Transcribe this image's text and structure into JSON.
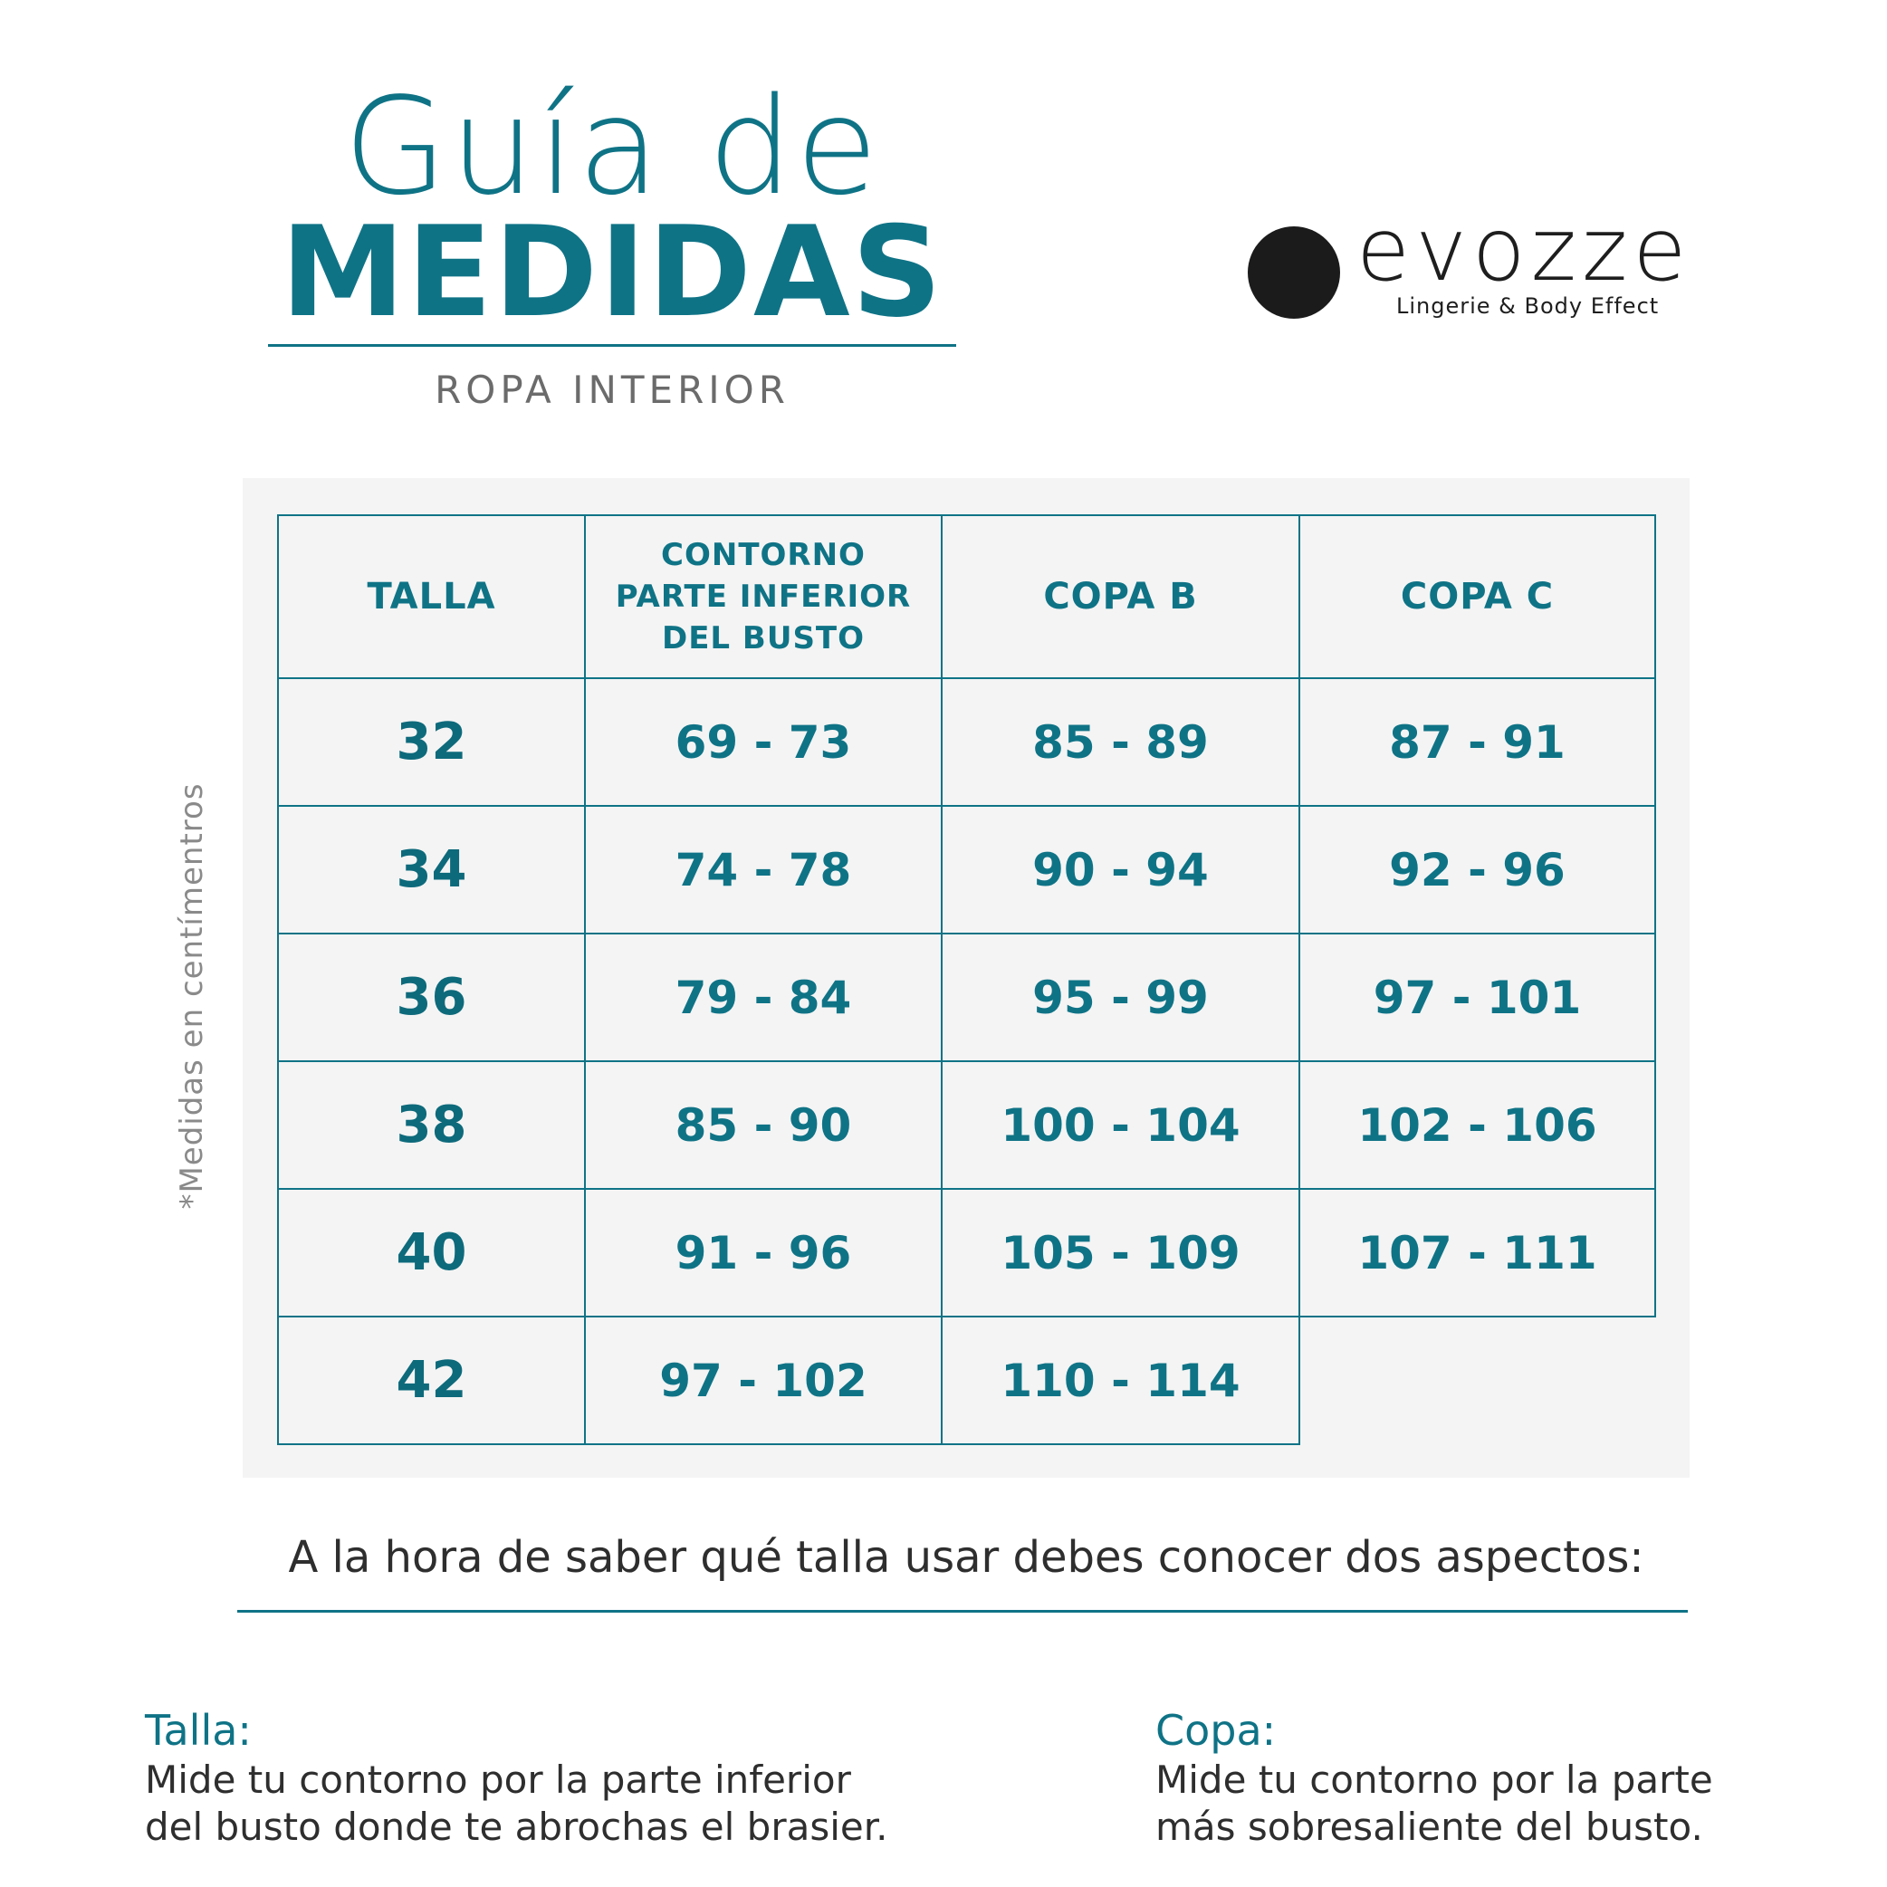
{
  "header": {
    "title_line1": "Guía de",
    "title_line2": "MEDIDAS",
    "subtitle": "ROPA INTERIOR"
  },
  "brand": {
    "name": "evozze",
    "tagline": "Lingerie & Body Effect"
  },
  "side_note": "*Medidas en centímentros",
  "table": {
    "headers": [
      "TALLA",
      "CONTORNO PARTE INFERIOR DEL BUSTO",
      "COPA B",
      "COPA C"
    ],
    "header_lines": [
      "CONTORNO",
      "PARTE INFERIOR",
      "DEL BUSTO"
    ],
    "rows": [
      [
        "32",
        "69 - 73",
        "85 - 89",
        "87 - 91"
      ],
      [
        "34",
        "74 - 78",
        "90 - 94",
        "92 - 96"
      ],
      [
        "36",
        "79 - 84",
        "95 - 99",
        "97 - 101"
      ],
      [
        "38",
        "85 - 90",
        "100 - 104",
        "102 - 106"
      ],
      [
        "40",
        "91 - 96",
        "105 - 109",
        "107 - 111"
      ],
      [
        "42",
        "97 - 102",
        "110 - 114",
        ""
      ]
    ]
  },
  "intro": "A la hora de saber qué talla usar debes conocer dos aspectos:",
  "talla": {
    "title": "Talla:",
    "line1": "Mide tu contorno por la parte inferior",
    "line2": "del busto donde te abrochas el brasier."
  },
  "copa": {
    "title": "Copa:",
    "line1": "Mide tu contorno por la parte",
    "line2": "más sobresaliente del busto."
  },
  "colors": {
    "accent": "#0f7386",
    "text": "#2e2e2e",
    "muted": "#8a8a8a",
    "panel": "#f4f4f4"
  }
}
